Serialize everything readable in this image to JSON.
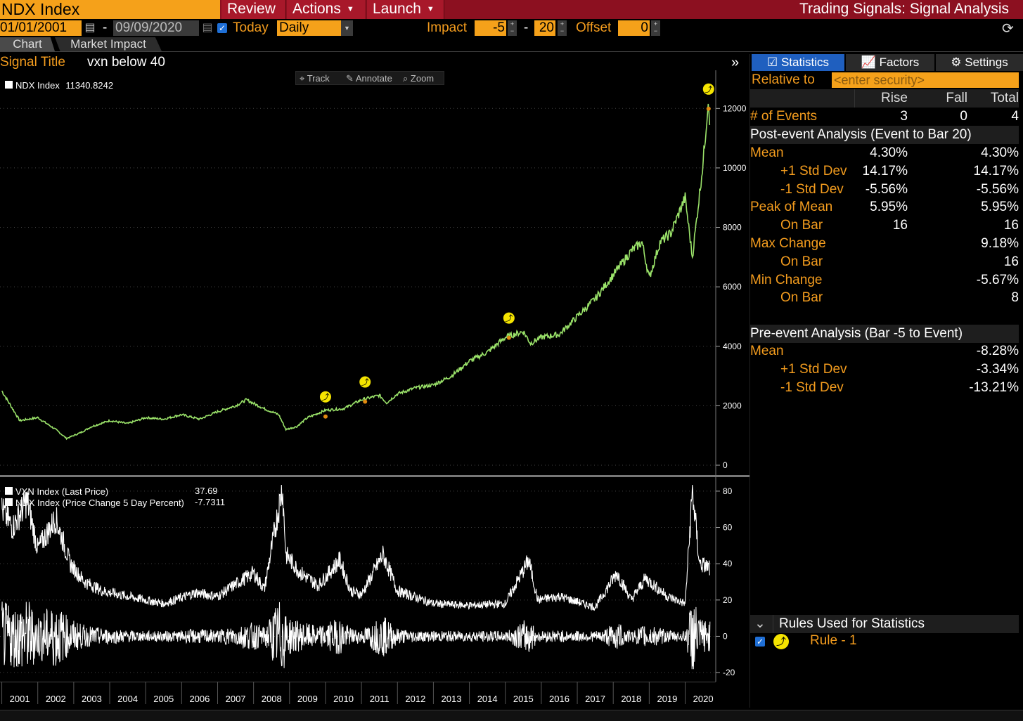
{
  "header": {
    "ticker": "NDX Index",
    "menu": [
      "Review",
      "Actions",
      "Launch"
    ],
    "app_title": "Trading Signals: Signal Analysis"
  },
  "controls": {
    "start_date": "01/01/2001",
    "date_sep": "-",
    "end_date": "09/09/2020",
    "today_label": "Today",
    "today_checked": true,
    "frequency": "Daily",
    "impact_label": "Impact",
    "impact_from": "-5",
    "impact_sep": "-",
    "impact_to": "20",
    "offset_label": "Offset",
    "offset": "0"
  },
  "tabs": [
    "Chart",
    "Market Impact"
  ],
  "signal": {
    "title_label": "Signal Title",
    "title": "vxn below 40"
  },
  "chart_tools": [
    "Track",
    "Annotate",
    "Zoom"
  ],
  "chart_data": [
    {
      "type": "line",
      "legend": [
        {
          "name": "NDX Index",
          "value": "11340.8242"
        }
      ],
      "ylim": [
        0,
        13000
      ],
      "yticks": [
        "12000",
        "10000",
        "8000",
        "6000",
        "4000",
        "2000",
        "0"
      ],
      "x": [
        2001.0,
        2001.5,
        2002.0,
        2002.5,
        2002.8,
        2003.2,
        2003.5,
        2004.0,
        2004.5,
        2005.0,
        2005.5,
        2006.0,
        2006.5,
        2007.0,
        2007.5,
        2007.8,
        2008.3,
        2008.7,
        2008.9,
        2009.2,
        2009.5,
        2010.0,
        2010.5,
        2011.0,
        2011.5,
        2011.7,
        2012.0,
        2012.5,
        2013.0,
        2013.5,
        2014.0,
        2014.5,
        2015.0,
        2015.5,
        2015.7,
        2016.0,
        2016.5,
        2017.0,
        2017.5,
        2018.0,
        2018.5,
        2018.8,
        2019.0,
        2019.3,
        2019.6,
        2020.0,
        2020.2,
        2020.5,
        2020.65,
        2020.69
      ],
      "y": [
        2500,
        1500,
        1600,
        1200,
        900,
        1100,
        1300,
        1500,
        1400,
        1600,
        1550,
        1700,
        1550,
        1800,
        2000,
        2200,
        1900,
        1700,
        1200,
        1300,
        1600,
        1850,
        1900,
        2200,
        2350,
        2100,
        2400,
        2600,
        2700,
        3000,
        3500,
        3800,
        4300,
        4500,
        4100,
        4300,
        4400,
        5000,
        5600,
        6400,
        7200,
        7500,
        6300,
        7500,
        7800,
        9000,
        7000,
        10200,
        12400,
        11340
      ],
      "events": [
        {
          "x": 2010.0,
          "y": 2300
        },
        {
          "x": 2011.1,
          "y": 2800
        },
        {
          "x": 2015.1,
          "y": 4950
        },
        {
          "x": 2020.65,
          "y": 12650
        }
      ]
    },
    {
      "type": "line",
      "legend": [
        {
          "name": "VXN Index (Last Price)",
          "value": "37.69"
        },
        {
          "name": "NDX Index (Price Change 5 Day Percent)",
          "value": "-7.7311"
        }
      ],
      "ylim": [
        -25,
        85
      ],
      "yticks": [
        "80",
        "60",
        "40",
        "20",
        "0",
        "-20"
      ],
      "series": [
        {
          "name": "VXN Index (Last Price)",
          "x": [
            2001.0,
            2001.3,
            2001.7,
            2002.0,
            2002.5,
            2002.9,
            2003.3,
            2003.8,
            2004.5,
            2005.5,
            2006.4,
            2007.0,
            2007.6,
            2008.0,
            2008.3,
            2008.8,
            2008.9,
            2009.3,
            2009.8,
            2010.4,
            2010.7,
            2011.0,
            2011.6,
            2012.0,
            2013.0,
            2014.0,
            2015.0,
            2015.65,
            2015.9,
            2016.5,
            2017.5,
            2018.1,
            2018.5,
            2018.9,
            2019.5,
            2020.0,
            2020.2,
            2020.4,
            2020.69
          ],
          "y": [
            70,
            60,
            75,
            48,
            65,
            40,
            30,
            25,
            22,
            18,
            24,
            22,
            30,
            35,
            26,
            82,
            45,
            35,
            28,
            42,
            25,
            23,
            45,
            25,
            18,
            17,
            18,
            42,
            20,
            22,
            16,
            35,
            20,
            32,
            22,
            18,
            80,
            40,
            37.69
          ]
        },
        {
          "name": "NDX Index (Price Change 5 Day Percent)",
          "kind": "oscillation",
          "center": 0,
          "amplitude": [
            3,
            20
          ]
        }
      ]
    }
  ],
  "xaxis_years": [
    "2001",
    "2002",
    "2003",
    "2004",
    "2005",
    "2006",
    "2007",
    "2008",
    "2009",
    "2010",
    "2011",
    "2012",
    "2013",
    "2014",
    "2015",
    "2016",
    "2017",
    "2018",
    "2019",
    "2020"
  ],
  "right_panel": {
    "tabs": [
      "Statistics",
      "Factors",
      "Settings"
    ],
    "relative_to_label": "Relative to",
    "relative_to_placeholder": "<enter security>",
    "col_headers": [
      "Rise",
      "Fall",
      "Total"
    ],
    "events_label": "# of Events",
    "events": [
      "3",
      "0",
      "4"
    ],
    "post_header": "Post-event Analysis (Event to Bar 20)",
    "post_rows": [
      {
        "label": "Mean",
        "rise": "4.30%",
        "total": "4.30%",
        "indent": false
      },
      {
        "label": "+1 Std Dev",
        "rise": "14.17%",
        "total": "14.17%",
        "indent": true
      },
      {
        "label": "-1 Std Dev",
        "rise": "-5.56%",
        "total": "-5.56%",
        "indent": true
      },
      {
        "label": "Peak of Mean",
        "rise": "5.95%",
        "total": "5.95%",
        "indent": false
      },
      {
        "label": "On Bar",
        "rise": "16",
        "total": "16",
        "indent": true
      },
      {
        "label": "Max Change",
        "rise": "",
        "total": "9.18%",
        "indent": false
      },
      {
        "label": "On Bar",
        "rise": "",
        "total": "16",
        "indent": true
      },
      {
        "label": "Min Change",
        "rise": "",
        "total": "-5.67%",
        "indent": false
      },
      {
        "label": "On Bar",
        "rise": "",
        "total": "8",
        "indent": true
      }
    ],
    "pre_header": "Pre-event Analysis (Bar -5 to Event)",
    "pre_rows": [
      {
        "label": "Mean",
        "total": "-8.28%",
        "indent": false
      },
      {
        "label": "+1 Std Dev",
        "total": "-3.34%",
        "indent": true
      },
      {
        "label": "-1 Std Dev",
        "total": "-13.21%",
        "indent": true
      }
    ],
    "rules_header": "Rules Used for Statistics",
    "rules": [
      {
        "label": "Rule - 1",
        "checked": true
      }
    ]
  },
  "colors": {
    "accent": "#f39c1e",
    "header_red": "#8c1020",
    "price_line": "#9be36a",
    "event_marker": "#f5e400",
    "active_tab": "#1f5fbf"
  }
}
